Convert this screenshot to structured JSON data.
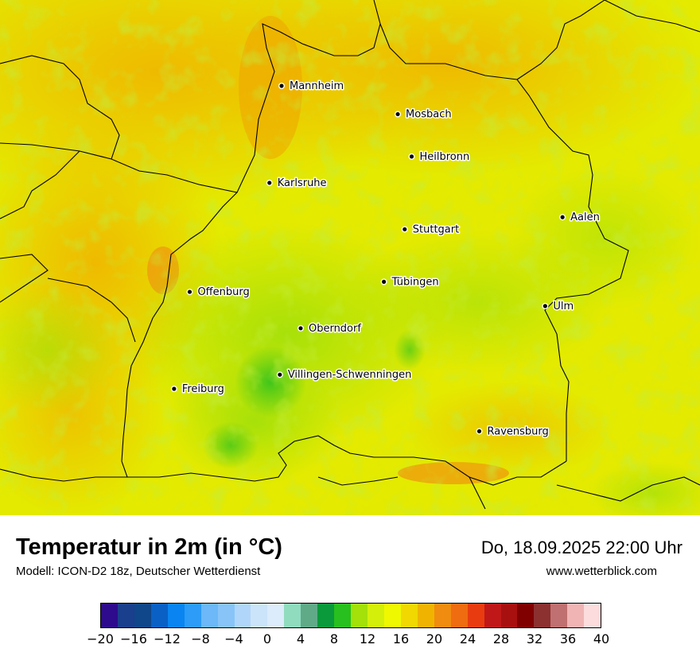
{
  "header": {
    "title": "Temperatur in 2m (in °C)",
    "model": "Modell: ICON-D2 18z, Deutscher Wetterdienst",
    "datetime": "Do, 18.09.2025 22:00 Uhr",
    "website": "www.wetterblick.com"
  },
  "cities": [
    {
      "name": "Mannheim",
      "lon": 8.47,
      "lat": 49.49
    },
    {
      "name": "Mosbach",
      "lon": 9.14,
      "lat": 49.35
    },
    {
      "name": "Heilbronn",
      "lon": 9.22,
      "lat": 49.14
    },
    {
      "name": "Karlsruhe",
      "lon": 8.4,
      "lat": 49.01
    },
    {
      "name": "Aalen",
      "lon": 10.09,
      "lat": 48.84
    },
    {
      "name": "Stuttgart",
      "lon": 9.18,
      "lat": 48.78
    },
    {
      "name": "Tübingen",
      "lon": 9.06,
      "lat": 48.52
    },
    {
      "name": "Offenburg",
      "lon": 7.94,
      "lat": 48.47
    },
    {
      "name": "Ulm",
      "lon": 9.99,
      "lat": 48.4
    },
    {
      "name": "Oberndorf",
      "lon": 8.58,
      "lat": 48.29
    },
    {
      "name": "Villingen-Schwenningen",
      "lon": 8.46,
      "lat": 48.06
    },
    {
      "name": "Freiburg",
      "lon": 7.85,
      "lat": 47.99
    },
    {
      "name": "Ravensburg",
      "lon": 9.61,
      "lat": 47.78
    }
  ],
  "legend": {
    "unit": "°C",
    "min": -20,
    "max": 40,
    "step": 2,
    "tick_labels": [
      "−20",
      "−16",
      "−12",
      "−8",
      "−4",
      "0",
      "4",
      "8",
      "12",
      "16",
      "20",
      "24",
      "28",
      "32",
      "36",
      "40"
    ],
    "colors": [
      "#2e0a8c",
      "#1a3f8c",
      "#10468a",
      "#0a60c4",
      "#0a84f0",
      "#2c9cf8",
      "#6cb8f8",
      "#88c4f8",
      "#b0d6fa",
      "#cce4fa",
      "#dcecfa",
      "#90dcbe",
      "#60aa88",
      "#0a9a3c",
      "#28c01e",
      "#a4e00a",
      "#d4f00a",
      "#f0f800",
      "#f0d800",
      "#f0b400",
      "#f08c10",
      "#f06c10",
      "#e83c10",
      "#c01818",
      "#a81010",
      "#800000",
      "#8c3030",
      "#c07070",
      "#f0b4b4",
      "#fcdcdc"
    ]
  }
}
